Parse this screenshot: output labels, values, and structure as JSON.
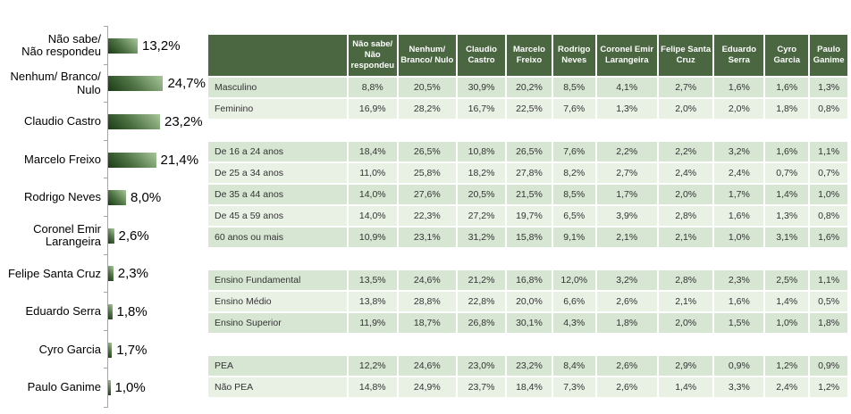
{
  "chart_data": [
    {
      "type": "bar",
      "orientation": "horizontal",
      "title": "",
      "xlabel": "",
      "ylabel": "",
      "xlim": [
        0,
        26
      ],
      "grid": false,
      "legend": "none",
      "axis_color": "#a6a6a6",
      "bar_gradient": [
        "#1b3a16",
        "#4f7344",
        "#a8c79a"
      ],
      "categories": [
        "Não sabe/\nNão respondeu",
        "Nenhum/ Branco/\nNulo",
        "Claudio Castro",
        "Marcelo Freixo",
        "Rodrigo Neves",
        "Coronel Emir\nLarangeira",
        "Felipe Santa Cruz",
        "Eduardo Serra",
        "Cyro Garcia",
        "Paulo Ganime"
      ],
      "values": [
        13.2,
        24.7,
        23.2,
        21.4,
        8.0,
        2.6,
        2.3,
        1.8,
        1.7,
        1.0
      ],
      "value_labels": [
        "13,2%",
        "24,7%",
        "23,2%",
        "21,4%",
        "8,0%",
        "2,6%",
        "2,3%",
        "1,8%",
        "1,7%",
        "1,0%"
      ]
    },
    {
      "type": "table",
      "header_bg": "#4a6741",
      "row_stripe_dark": "#d6e6d2",
      "row_stripe_light": "#e9f1e5",
      "corner_label": "",
      "columns": [
        "Não sabe/ Não respondeu",
        "Nenhum/ Branco/ Nulo",
        "Claudio Castro",
        "Marcelo Freixo",
        "Rodrigo Neves",
        "Coronel Emir Larangeira",
        "Felipe Santa Cruz",
        "Eduardo Serra",
        "Cyro Garcia",
        "Paulo Ganime"
      ],
      "groups": [
        {
          "rows": [
            {
              "label": "Masculino",
              "values": [
                "8,8%",
                "20,5%",
                "30,9%",
                "20,2%",
                "8,5%",
                "4,1%",
                "2,7%",
                "1,6%",
                "1,6%",
                "1,3%"
              ]
            },
            {
              "label": "Feminino",
              "values": [
                "16,9%",
                "28,2%",
                "16,7%",
                "22,5%",
                "7,6%",
                "1,3%",
                "2,0%",
                "2,0%",
                "1,8%",
                "0,8%"
              ]
            }
          ]
        },
        {
          "rows": [
            {
              "label": "De 16 a 24 anos",
              "values": [
                "18,4%",
                "26,5%",
                "10,8%",
                "26,5%",
                "7,6%",
                "2,2%",
                "2,2%",
                "3,2%",
                "1,6%",
                "1,1%"
              ]
            },
            {
              "label": "De 25 a 34 anos",
              "values": [
                "11,0%",
                "25,8%",
                "18,2%",
                "27,8%",
                "8,2%",
                "2,7%",
                "2,4%",
                "2,4%",
                "0,7%",
                "0,7%"
              ]
            },
            {
              "label": "De 35 a 44 anos",
              "values": [
                "14,0%",
                "27,6%",
                "20,5%",
                "21,5%",
                "8,5%",
                "1,7%",
                "2,0%",
                "1,7%",
                "1,4%",
                "1,0%"
              ]
            },
            {
              "label": "De 45 a 59 anos",
              "values": [
                "14,0%",
                "22,3%",
                "27,2%",
                "19,7%",
                "6,5%",
                "3,9%",
                "2,8%",
                "1,6%",
                "1,3%",
                "0,8%"
              ]
            },
            {
              "label": "60 anos ou mais",
              "values": [
                "10,9%",
                "23,1%",
                "31,2%",
                "15,8%",
                "9,1%",
                "2,1%",
                "2,1%",
                "1,0%",
                "3,1%",
                "1,6%"
              ]
            }
          ]
        },
        {
          "rows": [
            {
              "label": "Ensino Fundamental",
              "values": [
                "13,5%",
                "24,6%",
                "21,2%",
                "16,8%",
                "12,0%",
                "3,2%",
                "2,8%",
                "2,3%",
                "2,5%",
                "1,1%"
              ]
            },
            {
              "label": "Ensino Médio",
              "values": [
                "13,8%",
                "28,8%",
                "22,8%",
                "20,0%",
                "6,6%",
                "2,6%",
                "2,1%",
                "1,6%",
                "1,4%",
                "0,5%"
              ]
            },
            {
              "label": "Ensino Superior",
              "values": [
                "11,9%",
                "18,7%",
                "26,8%",
                "30,1%",
                "4,3%",
                "1,8%",
                "2,0%",
                "1,5%",
                "1,0%",
                "1,8%"
              ]
            }
          ]
        },
        {
          "rows": [
            {
              "label": "PEA",
              "values": [
                "12,2%",
                "24,6%",
                "23,0%",
                "23,2%",
                "8,4%",
                "2,6%",
                "2,9%",
                "0,9%",
                "1,2%",
                "0,9%"
              ]
            },
            {
              "label": "Não PEA",
              "values": [
                "14,8%",
                "24,9%",
                "23,7%",
                "18,4%",
                "7,3%",
                "2,6%",
                "1,4%",
                "3,3%",
                "2,4%",
                "1,2%"
              ]
            }
          ]
        }
      ]
    }
  ]
}
